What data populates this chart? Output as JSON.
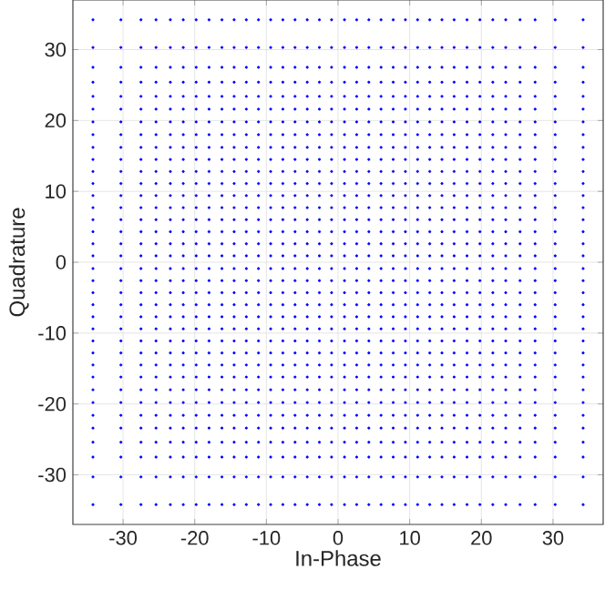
{
  "chart_data": {
    "type": "scatter",
    "xlabel": "In-Phase",
    "ylabel": "Quadrature",
    "xlim": [
      -37,
      37
    ],
    "ylim": [
      -37,
      37
    ],
    "xticks": [
      -30,
      -20,
      -10,
      0,
      10,
      20,
      30
    ],
    "yticks": [
      -30,
      -20,
      -10,
      0,
      10,
      20,
      30
    ],
    "grid": true,
    "marker": "circle",
    "x": [
      -34.2,
      -30.3,
      -27.5,
      -25.4,
      -23.4,
      -21.6,
      -19.8,
      -18,
      -16.2,
      -14.5,
      -12.8,
      -11.1,
      -9.4,
      -7.7,
      -6,
      -4.3,
      -2.6,
      -0.9,
      0.9,
      2.6,
      4.3,
      6,
      7.7,
      9.4,
      11.1,
      12.8,
      14.5,
      16.2,
      18,
      19.8,
      21.6,
      23.4,
      25.4,
      27.5,
      30.3,
      34.2
    ],
    "series": [
      {
        "color": "#0000ff",
        "values": [
          -34.2,
          -34.2,
          -34.2,
          -34.2,
          -34.2,
          -34.2,
          -34.2,
          -34.2,
          -34.2,
          -34.2,
          -34.2,
          -34.2,
          -34.2,
          -34.2,
          -34.2,
          -34.2,
          -34.2,
          -34.2,
          -34.2,
          -34.2,
          -34.2,
          -34.2,
          -34.2,
          -34.2,
          -34.2,
          -34.2,
          -34.2,
          -34.2,
          -34.2,
          -34.2,
          -34.2,
          -34.2,
          -34.2,
          -34.2,
          -34.2,
          -34.2
        ]
      },
      {
        "color": "#0000ff",
        "values": [
          -30.3,
          -30.3,
          -30.3,
          -30.3,
          -30.3,
          -30.3,
          -30.3,
          -30.3,
          -30.3,
          -30.3,
          -30.3,
          -30.3,
          -30.3,
          -30.3,
          -30.3,
          -30.3,
          -30.3,
          -30.3,
          -30.3,
          -30.3,
          -30.3,
          -30.3,
          -30.3,
          -30.3,
          -30.3,
          -30.3,
          -30.3,
          -30.3,
          -30.3,
          -30.3,
          -30.3,
          -30.3,
          -30.3,
          -30.3,
          -30.3,
          -30.3
        ]
      },
      {
        "color": "#0000ff",
        "values": [
          -27.5,
          -27.5,
          -27.5,
          -27.5,
          -27.5,
          -27.5,
          -27.5,
          -27.5,
          -27.5,
          -27.5,
          -27.5,
          -27.5,
          -27.5,
          -27.5,
          -27.5,
          -27.5,
          -27.5,
          -27.5,
          -27.5,
          -27.5,
          -27.5,
          -27.5,
          -27.5,
          -27.5,
          -27.5,
          -27.5,
          -27.5,
          -27.5,
          -27.5,
          -27.5,
          -27.5,
          -27.5,
          -27.5,
          -27.5,
          -27.5,
          -27.5
        ]
      },
      {
        "color": "#0000ff",
        "values": [
          -25.4,
          -25.4,
          -25.4,
          -25.4,
          -25.4,
          -25.4,
          -25.4,
          -25.4,
          -25.4,
          -25.4,
          -25.4,
          -25.4,
          -25.4,
          -25.4,
          -25.4,
          -25.4,
          -25.4,
          -25.4,
          -25.4,
          -25.4,
          -25.4,
          -25.4,
          -25.4,
          -25.4,
          -25.4,
          -25.4,
          -25.4,
          -25.4,
          -25.4,
          -25.4,
          -25.4,
          -25.4,
          -25.4,
          -25.4,
          -25.4,
          -25.4
        ]
      },
      {
        "color": "#0000ff",
        "values": [
          -23.4,
          -23.4,
          -23.4,
          -23.4,
          -23.4,
          -23.4,
          -23.4,
          -23.4,
          -23.4,
          -23.4,
          -23.4,
          -23.4,
          -23.4,
          -23.4,
          -23.4,
          -23.4,
          -23.4,
          -23.4,
          -23.4,
          -23.4,
          -23.4,
          -23.4,
          -23.4,
          -23.4,
          -23.4,
          -23.4,
          -23.4,
          -23.4,
          -23.4,
          -23.4,
          -23.4,
          -23.4,
          -23.4,
          -23.4,
          -23.4,
          -23.4
        ]
      },
      {
        "color": "#0000ff",
        "values": [
          -21.6,
          -21.6,
          -21.6,
          -21.6,
          -21.6,
          -21.6,
          -21.6,
          -21.6,
          -21.6,
          -21.6,
          -21.6,
          -21.6,
          -21.6,
          -21.6,
          -21.6,
          -21.6,
          -21.6,
          -21.6,
          -21.6,
          -21.6,
          -21.6,
          -21.6,
          -21.6,
          -21.6,
          -21.6,
          -21.6,
          -21.6,
          -21.6,
          -21.6,
          -21.6,
          -21.6,
          -21.6,
          -21.6,
          -21.6,
          -21.6,
          -21.6
        ]
      },
      {
        "color": "#0000ff",
        "values": [
          -19.8,
          -19.8,
          -19.8,
          -19.8,
          -19.8,
          -19.8,
          -19.8,
          -19.8,
          -19.8,
          -19.8,
          -19.8,
          -19.8,
          -19.8,
          -19.8,
          -19.8,
          -19.8,
          -19.8,
          -19.8,
          -19.8,
          -19.8,
          -19.8,
          -19.8,
          -19.8,
          -19.8,
          -19.8,
          -19.8,
          -19.8,
          -19.8,
          -19.8,
          -19.8,
          -19.8,
          -19.8,
          -19.8,
          -19.8,
          -19.8,
          -19.8
        ]
      },
      {
        "color": "#0000ff",
        "values": [
          -18,
          -18,
          -18,
          -18,
          -18,
          -18,
          -18,
          -18,
          -18,
          -18,
          -18,
          -18,
          -18,
          -18,
          -18,
          -18,
          -18,
          -18,
          -18,
          -18,
          -18,
          -18,
          -18,
          -18,
          -18,
          -18,
          -18,
          -18,
          -18,
          -18,
          -18,
          -18,
          -18,
          -18,
          -18,
          -18
        ]
      },
      {
        "color": "#0000ff",
        "values": [
          -16.2,
          -16.2,
          -16.2,
          -16.2,
          -16.2,
          -16.2,
          -16.2,
          -16.2,
          -16.2,
          -16.2,
          -16.2,
          -16.2,
          -16.2,
          -16.2,
          -16.2,
          -16.2,
          -16.2,
          -16.2,
          -16.2,
          -16.2,
          -16.2,
          -16.2,
          -16.2,
          -16.2,
          -16.2,
          -16.2,
          -16.2,
          -16.2,
          -16.2,
          -16.2,
          -16.2,
          -16.2,
          -16.2,
          -16.2,
          -16.2,
          -16.2
        ]
      },
      {
        "color": "#0000ff",
        "values": [
          -14.5,
          -14.5,
          -14.5,
          -14.5,
          -14.5,
          -14.5,
          -14.5,
          -14.5,
          -14.5,
          -14.5,
          -14.5,
          -14.5,
          -14.5,
          -14.5,
          -14.5,
          -14.5,
          -14.5,
          -14.5,
          -14.5,
          -14.5,
          -14.5,
          -14.5,
          -14.5,
          -14.5,
          -14.5,
          -14.5,
          -14.5,
          -14.5,
          -14.5,
          -14.5,
          -14.5,
          -14.5,
          -14.5,
          -14.5,
          -14.5,
          -14.5
        ]
      },
      {
        "color": "#0000ff",
        "values": [
          -12.8,
          -12.8,
          -12.8,
          -12.8,
          -12.8,
          -12.8,
          -12.8,
          -12.8,
          -12.8,
          -12.8,
          -12.8,
          -12.8,
          -12.8,
          -12.8,
          -12.8,
          -12.8,
          -12.8,
          -12.8,
          -12.8,
          -12.8,
          -12.8,
          -12.8,
          -12.8,
          -12.8,
          -12.8,
          -12.8,
          -12.8,
          -12.8,
          -12.8,
          -12.8,
          -12.8,
          -12.8,
          -12.8,
          -12.8,
          -12.8,
          -12.8
        ]
      },
      {
        "color": "#0000ff",
        "values": [
          -11.1,
          -11.1,
          -11.1,
          -11.1,
          -11.1,
          -11.1,
          -11.1,
          -11.1,
          -11.1,
          -11.1,
          -11.1,
          -11.1,
          -11.1,
          -11.1,
          -11.1,
          -11.1,
          -11.1,
          -11.1,
          -11.1,
          -11.1,
          -11.1,
          -11.1,
          -11.1,
          -11.1,
          -11.1,
          -11.1,
          -11.1,
          -11.1,
          -11.1,
          -11.1,
          -11.1,
          -11.1,
          -11.1,
          -11.1,
          -11.1,
          -11.1
        ]
      },
      {
        "color": "#0000ff",
        "values": [
          -9.4,
          -9.4,
          -9.4,
          -9.4,
          -9.4,
          -9.4,
          -9.4,
          -9.4,
          -9.4,
          -9.4,
          -9.4,
          -9.4,
          -9.4,
          -9.4,
          -9.4,
          -9.4,
          -9.4,
          -9.4,
          -9.4,
          -9.4,
          -9.4,
          -9.4,
          -9.4,
          -9.4,
          -9.4,
          -9.4,
          -9.4,
          -9.4,
          -9.4,
          -9.4,
          -9.4,
          -9.4,
          -9.4,
          -9.4,
          -9.4,
          -9.4
        ]
      },
      {
        "color": "#0000ff",
        "values": [
          -7.7,
          -7.7,
          -7.7,
          -7.7,
          -7.7,
          -7.7,
          -7.7,
          -7.7,
          -7.7,
          -7.7,
          -7.7,
          -7.7,
          -7.7,
          -7.7,
          -7.7,
          -7.7,
          -7.7,
          -7.7,
          -7.7,
          -7.7,
          -7.7,
          -7.7,
          -7.7,
          -7.7,
          -7.7,
          -7.7,
          -7.7,
          -7.7,
          -7.7,
          -7.7,
          -7.7,
          -7.7,
          -7.7,
          -7.7,
          -7.7,
          -7.7
        ]
      },
      {
        "color": "#0000ff",
        "values": [
          -6,
          -6,
          -6,
          -6,
          -6,
          -6,
          -6,
          -6,
          -6,
          -6,
          -6,
          -6,
          -6,
          -6,
          -6,
          -6,
          -6,
          -6,
          -6,
          -6,
          -6,
          -6,
          -6,
          -6,
          -6,
          -6,
          -6,
          -6,
          -6,
          -6,
          -6,
          -6,
          -6,
          -6,
          -6,
          -6
        ]
      },
      {
        "color": "#0000ff",
        "values": [
          -4.3,
          -4.3,
          -4.3,
          -4.3,
          -4.3,
          -4.3,
          -4.3,
          -4.3,
          -4.3,
          -4.3,
          -4.3,
          -4.3,
          -4.3,
          -4.3,
          -4.3,
          -4.3,
          -4.3,
          -4.3,
          -4.3,
          -4.3,
          -4.3,
          -4.3,
          -4.3,
          -4.3,
          -4.3,
          -4.3,
          -4.3,
          -4.3,
          -4.3,
          -4.3,
          -4.3,
          -4.3,
          -4.3,
          -4.3,
          -4.3,
          -4.3
        ]
      },
      {
        "color": "#0000ff",
        "values": [
          -2.6,
          -2.6,
          -2.6,
          -2.6,
          -2.6,
          -2.6,
          -2.6,
          -2.6,
          -2.6,
          -2.6,
          -2.6,
          -2.6,
          -2.6,
          -2.6,
          -2.6,
          -2.6,
          -2.6,
          -2.6,
          -2.6,
          -2.6,
          -2.6,
          -2.6,
          -2.6,
          -2.6,
          -2.6,
          -2.6,
          -2.6,
          -2.6,
          -2.6,
          -2.6,
          -2.6,
          -2.6,
          -2.6,
          -2.6,
          -2.6,
          -2.6
        ]
      },
      {
        "color": "#0000ff",
        "values": [
          -0.9,
          -0.9,
          -0.9,
          -0.9,
          -0.9,
          -0.9,
          -0.9,
          -0.9,
          -0.9,
          -0.9,
          -0.9,
          -0.9,
          -0.9,
          -0.9,
          -0.9,
          -0.9,
          -0.9,
          -0.9,
          -0.9,
          -0.9,
          -0.9,
          -0.9,
          -0.9,
          -0.9,
          -0.9,
          -0.9,
          -0.9,
          -0.9,
          -0.9,
          -0.9,
          -0.9,
          -0.9,
          -0.9,
          -0.9,
          -0.9,
          -0.9
        ]
      },
      {
        "color": "#0000ff",
        "values": [
          0.9,
          0.9,
          0.9,
          0.9,
          0.9,
          0.9,
          0.9,
          0.9,
          0.9,
          0.9,
          0.9,
          0.9,
          0.9,
          0.9,
          0.9,
          0.9,
          0.9,
          0.9,
          0.9,
          0.9,
          0.9,
          0.9,
          0.9,
          0.9,
          0.9,
          0.9,
          0.9,
          0.9,
          0.9,
          0.9,
          0.9,
          0.9,
          0.9,
          0.9,
          0.9,
          0.9
        ]
      },
      {
        "color": "#0000ff",
        "values": [
          2.6,
          2.6,
          2.6,
          2.6,
          2.6,
          2.6,
          2.6,
          2.6,
          2.6,
          2.6,
          2.6,
          2.6,
          2.6,
          2.6,
          2.6,
          2.6,
          2.6,
          2.6,
          2.6,
          2.6,
          2.6,
          2.6,
          2.6,
          2.6,
          2.6,
          2.6,
          2.6,
          2.6,
          2.6,
          2.6,
          2.6,
          2.6,
          2.6,
          2.6,
          2.6,
          2.6
        ]
      },
      {
        "color": "#0000ff",
        "values": [
          4.3,
          4.3,
          4.3,
          4.3,
          4.3,
          4.3,
          4.3,
          4.3,
          4.3,
          4.3,
          4.3,
          4.3,
          4.3,
          4.3,
          4.3,
          4.3,
          4.3,
          4.3,
          4.3,
          4.3,
          4.3,
          4.3,
          4.3,
          4.3,
          4.3,
          4.3,
          4.3,
          4.3,
          4.3,
          4.3,
          4.3,
          4.3,
          4.3,
          4.3,
          4.3,
          4.3
        ]
      },
      {
        "color": "#0000ff",
        "values": [
          6,
          6,
          6,
          6,
          6,
          6,
          6,
          6,
          6,
          6,
          6,
          6,
          6,
          6,
          6,
          6,
          6,
          6,
          6,
          6,
          6,
          6,
          6,
          6,
          6,
          6,
          6,
          6,
          6,
          6,
          6,
          6,
          6,
          6,
          6,
          6
        ]
      },
      {
        "color": "#0000ff",
        "values": [
          7.7,
          7.7,
          7.7,
          7.7,
          7.7,
          7.7,
          7.7,
          7.7,
          7.7,
          7.7,
          7.7,
          7.7,
          7.7,
          7.7,
          7.7,
          7.7,
          7.7,
          7.7,
          7.7,
          7.7,
          7.7,
          7.7,
          7.7,
          7.7,
          7.7,
          7.7,
          7.7,
          7.7,
          7.7,
          7.7,
          7.7,
          7.7,
          7.7,
          7.7,
          7.7,
          7.7
        ]
      },
      {
        "color": "#0000ff",
        "values": [
          9.4,
          9.4,
          9.4,
          9.4,
          9.4,
          9.4,
          9.4,
          9.4,
          9.4,
          9.4,
          9.4,
          9.4,
          9.4,
          9.4,
          9.4,
          9.4,
          9.4,
          9.4,
          9.4,
          9.4,
          9.4,
          9.4,
          9.4,
          9.4,
          9.4,
          9.4,
          9.4,
          9.4,
          9.4,
          9.4,
          9.4,
          9.4,
          9.4,
          9.4,
          9.4,
          9.4
        ]
      },
      {
        "color": "#0000ff",
        "values": [
          11.1,
          11.1,
          11.1,
          11.1,
          11.1,
          11.1,
          11.1,
          11.1,
          11.1,
          11.1,
          11.1,
          11.1,
          11.1,
          11.1,
          11.1,
          11.1,
          11.1,
          11.1,
          11.1,
          11.1,
          11.1,
          11.1,
          11.1,
          11.1,
          11.1,
          11.1,
          11.1,
          11.1,
          11.1,
          11.1,
          11.1,
          11.1,
          11.1,
          11.1,
          11.1,
          11.1
        ]
      },
      {
        "color": "#0000ff",
        "values": [
          12.8,
          12.8,
          12.8,
          12.8,
          12.8,
          12.8,
          12.8,
          12.8,
          12.8,
          12.8,
          12.8,
          12.8,
          12.8,
          12.8,
          12.8,
          12.8,
          12.8,
          12.8,
          12.8,
          12.8,
          12.8,
          12.8,
          12.8,
          12.8,
          12.8,
          12.8,
          12.8,
          12.8,
          12.8,
          12.8,
          12.8,
          12.8,
          12.8,
          12.8,
          12.8,
          12.8
        ]
      },
      {
        "color": "#0000ff",
        "values": [
          14.5,
          14.5,
          14.5,
          14.5,
          14.5,
          14.5,
          14.5,
          14.5,
          14.5,
          14.5,
          14.5,
          14.5,
          14.5,
          14.5,
          14.5,
          14.5,
          14.5,
          14.5,
          14.5,
          14.5,
          14.5,
          14.5,
          14.5,
          14.5,
          14.5,
          14.5,
          14.5,
          14.5,
          14.5,
          14.5,
          14.5,
          14.5,
          14.5,
          14.5,
          14.5,
          14.5
        ]
      },
      {
        "color": "#0000ff",
        "values": [
          16.2,
          16.2,
          16.2,
          16.2,
          16.2,
          16.2,
          16.2,
          16.2,
          16.2,
          16.2,
          16.2,
          16.2,
          16.2,
          16.2,
          16.2,
          16.2,
          16.2,
          16.2,
          16.2,
          16.2,
          16.2,
          16.2,
          16.2,
          16.2,
          16.2,
          16.2,
          16.2,
          16.2,
          16.2,
          16.2,
          16.2,
          16.2,
          16.2,
          16.2,
          16.2,
          16.2
        ]
      },
      {
        "color": "#0000ff",
        "values": [
          18,
          18,
          18,
          18,
          18,
          18,
          18,
          18,
          18,
          18,
          18,
          18,
          18,
          18,
          18,
          18,
          18,
          18,
          18,
          18,
          18,
          18,
          18,
          18,
          18,
          18,
          18,
          18,
          18,
          18,
          18,
          18,
          18,
          18,
          18,
          18
        ]
      },
      {
        "color": "#0000ff",
        "values": [
          19.8,
          19.8,
          19.8,
          19.8,
          19.8,
          19.8,
          19.8,
          19.8,
          19.8,
          19.8,
          19.8,
          19.8,
          19.8,
          19.8,
          19.8,
          19.8,
          19.8,
          19.8,
          19.8,
          19.8,
          19.8,
          19.8,
          19.8,
          19.8,
          19.8,
          19.8,
          19.8,
          19.8,
          19.8,
          19.8,
          19.8,
          19.8,
          19.8,
          19.8,
          19.8,
          19.8
        ]
      },
      {
        "color": "#0000ff",
        "values": [
          21.6,
          21.6,
          21.6,
          21.6,
          21.6,
          21.6,
          21.6,
          21.6,
          21.6,
          21.6,
          21.6,
          21.6,
          21.6,
          21.6,
          21.6,
          21.6,
          21.6,
          21.6,
          21.6,
          21.6,
          21.6,
          21.6,
          21.6,
          21.6,
          21.6,
          21.6,
          21.6,
          21.6,
          21.6,
          21.6,
          21.6,
          21.6,
          21.6,
          21.6,
          21.6,
          21.6
        ]
      },
      {
        "color": "#0000ff",
        "values": [
          23.4,
          23.4,
          23.4,
          23.4,
          23.4,
          23.4,
          23.4,
          23.4,
          23.4,
          23.4,
          23.4,
          23.4,
          23.4,
          23.4,
          23.4,
          23.4,
          23.4,
          23.4,
          23.4,
          23.4,
          23.4,
          23.4,
          23.4,
          23.4,
          23.4,
          23.4,
          23.4,
          23.4,
          23.4,
          23.4,
          23.4,
          23.4,
          23.4,
          23.4,
          23.4,
          23.4
        ]
      },
      {
        "color": "#0000ff",
        "values": [
          25.4,
          25.4,
          25.4,
          25.4,
          25.4,
          25.4,
          25.4,
          25.4,
          25.4,
          25.4,
          25.4,
          25.4,
          25.4,
          25.4,
          25.4,
          25.4,
          25.4,
          25.4,
          25.4,
          25.4,
          25.4,
          25.4,
          25.4,
          25.4,
          25.4,
          25.4,
          25.4,
          25.4,
          25.4,
          25.4,
          25.4,
          25.4,
          25.4,
          25.4,
          25.4,
          25.4
        ]
      },
      {
        "color": "#0000ff",
        "values": [
          27.5,
          27.5,
          27.5,
          27.5,
          27.5,
          27.5,
          27.5,
          27.5,
          27.5,
          27.5,
          27.5,
          27.5,
          27.5,
          27.5,
          27.5,
          27.5,
          27.5,
          27.5,
          27.5,
          27.5,
          27.5,
          27.5,
          27.5,
          27.5,
          27.5,
          27.5,
          27.5,
          27.5,
          27.5,
          27.5,
          27.5,
          27.5,
          27.5,
          27.5,
          27.5,
          27.5
        ]
      },
      {
        "color": "#0000ff",
        "values": [
          30.3,
          30.3,
          30.3,
          30.3,
          30.3,
          30.3,
          30.3,
          30.3,
          30.3,
          30.3,
          30.3,
          30.3,
          30.3,
          30.3,
          30.3,
          30.3,
          30.3,
          30.3,
          30.3,
          30.3,
          30.3,
          30.3,
          30.3,
          30.3,
          30.3,
          30.3,
          30.3,
          30.3,
          30.3,
          30.3,
          30.3,
          30.3,
          30.3,
          30.3,
          30.3,
          30.3
        ]
      },
      {
        "color": "#0000ff",
        "values": [
          34.2,
          34.2,
          34.2,
          34.2,
          34.2,
          34.2,
          34.2,
          34.2,
          34.2,
          34.2,
          34.2,
          34.2,
          34.2,
          34.2,
          34.2,
          34.2,
          34.2,
          34.2,
          34.2,
          34.2,
          34.2,
          34.2,
          34.2,
          34.2,
          34.2,
          34.2,
          34.2,
          34.2,
          34.2,
          34.2,
          34.2,
          34.2,
          34.2,
          34.2,
          34.2,
          34.2
        ]
      }
    ]
  }
}
